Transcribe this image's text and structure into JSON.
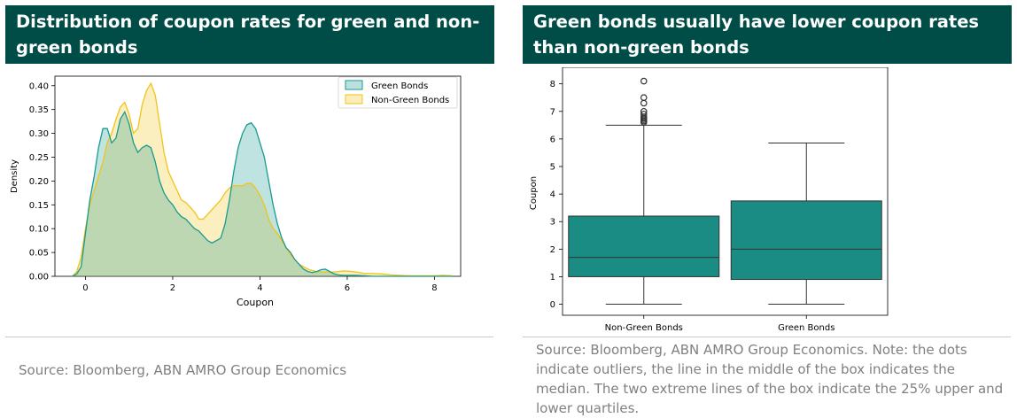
{
  "left_panel": {
    "title": "Distribution of coupon rates for green and non-green bonds",
    "source": "Source: Bloomberg, ABN AMRO Group Economics"
  },
  "right_panel": {
    "title": "Green bonds usually have lower coupon rates than non-green bonds",
    "source": "Source: Bloomberg, ABN AMRO Group Economics. Note: the dots indicate outliers, the line in the middle of the box indicates the median. The two extreme lines of the box indicate the 25% upper and lower quartiles."
  },
  "colors": {
    "header_bg": "#004c47",
    "green_bonds": "#1a9a90",
    "non_green_bonds": "#f0c419",
    "box_fill": "#1a8c84"
  },
  "chart_data": [
    {
      "type": "area",
      "title": "Distribution of coupon rates for green and non-green bonds",
      "xlabel": "Coupon",
      "ylabel": "Density",
      "xlim": [
        -0.7,
        8.6
      ],
      "ylim": [
        0,
        0.42
      ],
      "x_ticks": [
        0,
        2,
        4,
        6,
        8
      ],
      "y_ticks": [
        0.0,
        0.05,
        0.1,
        0.15,
        0.2,
        0.25,
        0.3,
        0.35,
        0.4
      ],
      "legend_position": "top-right",
      "x": [
        -0.3,
        -0.2,
        -0.1,
        0,
        0.1,
        0.2,
        0.3,
        0.4,
        0.5,
        0.6,
        0.7,
        0.8,
        0.9,
        1.0,
        1.1,
        1.2,
        1.3,
        1.4,
        1.5,
        1.6,
        1.7,
        1.8,
        1.9,
        2.0,
        2.1,
        2.2,
        2.3,
        2.4,
        2.5,
        2.6,
        2.7,
        2.8,
        2.9,
        3.0,
        3.1,
        3.2,
        3.3,
        3.4,
        3.5,
        3.6,
        3.7,
        3.8,
        3.9,
        4.0,
        4.1,
        4.2,
        4.3,
        4.4,
        4.5,
        4.6,
        4.7,
        4.8,
        4.9,
        5.0,
        5.1,
        5.2,
        5.3,
        5.4,
        5.5,
        5.6,
        5.7,
        5.8,
        5.9,
        6.0,
        6.2,
        6.4,
        6.6,
        6.8,
        7.0,
        7.2,
        7.4,
        7.6,
        7.8,
        8.0,
        8.2,
        8.4
      ],
      "series": [
        {
          "name": "Green Bonds",
          "color": "#1a9a90",
          "values": [
            0.0,
            0.005,
            0.02,
            0.09,
            0.16,
            0.21,
            0.27,
            0.31,
            0.31,
            0.28,
            0.29,
            0.33,
            0.345,
            0.32,
            0.28,
            0.26,
            0.27,
            0.275,
            0.27,
            0.24,
            0.2,
            0.175,
            0.16,
            0.15,
            0.135,
            0.125,
            0.12,
            0.11,
            0.1,
            0.095,
            0.085,
            0.075,
            0.07,
            0.075,
            0.08,
            0.11,
            0.16,
            0.22,
            0.27,
            0.3,
            0.318,
            0.322,
            0.31,
            0.28,
            0.25,
            0.2,
            0.15,
            0.11,
            0.08,
            0.06,
            0.05,
            0.035,
            0.025,
            0.015,
            0.01,
            0.008,
            0.01,
            0.014,
            0.015,
            0.01,
            0.005,
            0.003,
            0.002,
            0.002,
            0.002,
            0.001,
            0.0,
            0.0,
            0.0,
            0.0,
            0.0,
            0.0,
            0.0,
            0.0,
            0.0,
            0.0
          ]
        },
        {
          "name": "Non-Green Bonds",
          "color": "#f0c419",
          "values": [
            0.0,
            0.01,
            0.04,
            0.1,
            0.15,
            0.18,
            0.21,
            0.24,
            0.28,
            0.3,
            0.33,
            0.355,
            0.365,
            0.34,
            0.3,
            0.31,
            0.36,
            0.39,
            0.405,
            0.38,
            0.32,
            0.26,
            0.22,
            0.2,
            0.18,
            0.16,
            0.155,
            0.145,
            0.135,
            0.12,
            0.12,
            0.13,
            0.14,
            0.15,
            0.16,
            0.175,
            0.185,
            0.19,
            0.19,
            0.19,
            0.195,
            0.195,
            0.185,
            0.17,
            0.15,
            0.12,
            0.1,
            0.09,
            0.075,
            0.06,
            0.045,
            0.035,
            0.025,
            0.02,
            0.015,
            0.012,
            0.01,
            0.009,
            0.009,
            0.009,
            0.009,
            0.01,
            0.011,
            0.011,
            0.009,
            0.006,
            0.006,
            0.005,
            0.003,
            0.002,
            0.001,
            0.001,
            0.001,
            0.001,
            0.002,
            0.001
          ]
        }
      ]
    },
    {
      "type": "box",
      "title": "Green bonds usually have lower coupon rates than non-green bonds",
      "xlabel": "",
      "ylabel": "Coupon",
      "ylim": [
        -0.4,
        8.6
      ],
      "y_ticks": [
        0,
        1,
        2,
        3,
        4,
        5,
        6,
        7,
        8
      ],
      "categories": [
        "Non-Green Bonds",
        "Green Bonds"
      ],
      "boxes": [
        {
          "name": "Non-Green Bonds",
          "whisker_low": 0.0,
          "q1": 1.0,
          "median": 1.7,
          "q3": 3.2,
          "whisker_high": 6.5,
          "outliers": [
            6.6,
            6.65,
            6.7,
            6.75,
            6.8,
            6.9,
            7.0,
            7.3,
            7.5,
            8.1
          ]
        },
        {
          "name": "Green Bonds",
          "whisker_low": 0.0,
          "q1": 0.9,
          "median": 2.0,
          "q3": 3.75,
          "whisker_high": 5.85,
          "outliers": []
        }
      ]
    }
  ]
}
